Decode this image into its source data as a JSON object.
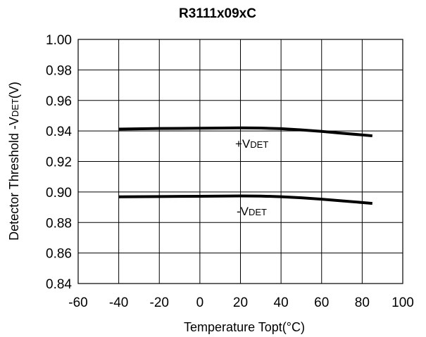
{
  "chart_data": {
    "type": "line",
    "title": "R3111x09xC",
    "xlabel": "Temperature Topt(°C)",
    "ylabel_prefix": "Detector Threshold -V",
    "ylabel_subscript": "DET",
    "ylabel_suffix": "(V)",
    "xlim": [
      -60,
      100
    ],
    "ylim": [
      0.84,
      1.0
    ],
    "x_ticks": [
      -60,
      -40,
      -20,
      0,
      20,
      40,
      60,
      80,
      100
    ],
    "y_ticks": [
      0.84,
      0.86,
      0.88,
      0.9,
      0.92,
      0.94,
      0.96,
      0.98,
      1.0
    ],
    "x_tick_labels": [
      "-60",
      "-40",
      "-20",
      "0",
      "20",
      "40",
      "60",
      "80",
      "100"
    ],
    "y_tick_labels": [
      "0.84",
      "0.86",
      "0.88",
      "0.90",
      "0.92",
      "0.94",
      "0.96",
      "0.98",
      "1.00"
    ],
    "grid": true,
    "legend": "none",
    "series": [
      {
        "name": "+VDET",
        "label_prefix": "+V",
        "label_subscript": "DET",
        "x": [
          -40,
          -20,
          0,
          20,
          30,
          40,
          50,
          60,
          70,
          80,
          85
        ],
        "values": [
          0.9412,
          0.9416,
          0.9418,
          0.942,
          0.9419,
          0.9415,
          0.9407,
          0.9397,
          0.9385,
          0.9374,
          0.9368
        ]
      },
      {
        "name": "-VDET",
        "label_prefix": "-V",
        "label_subscript": "DET",
        "x": [
          -40,
          -20,
          0,
          20,
          30,
          40,
          50,
          60,
          70,
          80,
          85
        ],
        "values": [
          0.8968,
          0.897,
          0.8972,
          0.8974,
          0.8973,
          0.8969,
          0.8962,
          0.8953,
          0.8942,
          0.8931,
          0.8925
        ]
      }
    ],
    "colors": {
      "line": "#000000",
      "grid": "#000000",
      "background": "#ffffff"
    }
  }
}
